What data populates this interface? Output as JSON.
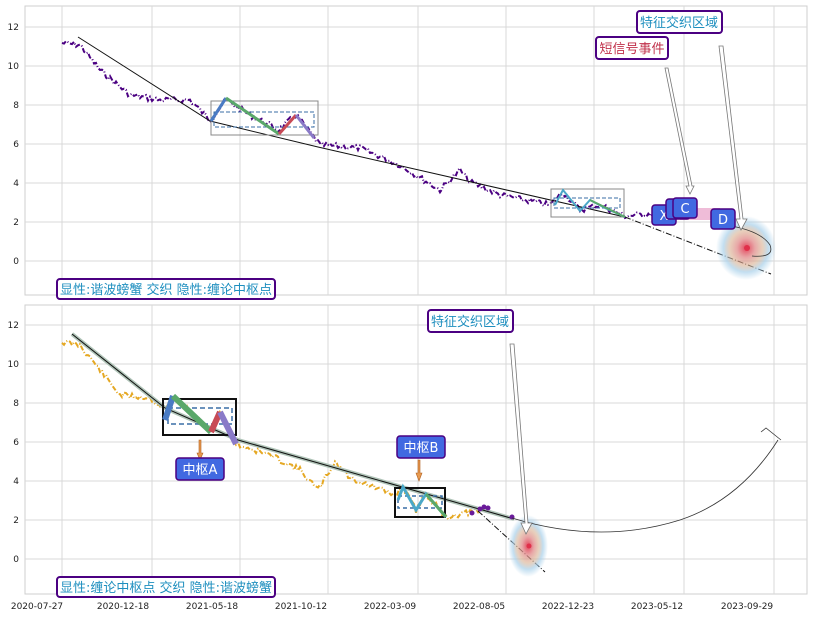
{
  "chart_data": [
    {
      "type": "line",
      "panel": "top",
      "legend_text": "显性:谐波螃蟹 交织 隐性:缠论中枢点",
      "ylim": [
        -1.8,
        13.0
      ],
      "yticks": [
        0,
        2,
        4,
        6,
        8,
        10,
        12
      ],
      "grid": true,
      "colors": {
        "price": "#4b0082",
        "trend": "#000000",
        "frame": "#4b0082"
      },
      "annotations": [
        {
          "id": "feature",
          "text": "特征交织区域",
          "color": "#1f8fbf"
        },
        {
          "id": "sms",
          "text": "短信号事件",
          "color": "#c0304a"
        },
        {
          "id": "c",
          "text": "C"
        },
        {
          "id": "x",
          "text": "X"
        },
        {
          "id": "d",
          "text": "D"
        }
      ]
    },
    {
      "type": "line",
      "panel": "bottom",
      "legend_text": "显性:缠论中枢点 交织 隐性:谐波螃蟹",
      "ylim": [
        -1.8,
        13.0
      ],
      "yticks": [
        0,
        2,
        4,
        6,
        8,
        10,
        12
      ],
      "xticks": [
        "2020-07-27",
        "2020-12-18",
        "2021-05-18",
        "2021-10-12",
        "2022-03-09",
        "2022-08-05",
        "2022-12-23",
        "2023-05-12",
        "2023-09-29"
      ],
      "grid": true,
      "colors": {
        "price": "#e5a823",
        "trend": "#000000",
        "frame": "#4b0082"
      },
      "annotations": [
        {
          "id": "feature",
          "text": "特征交织区域",
          "color": "#1f8fbf"
        },
        {
          "id": "zsa",
          "text": "中枢A"
        },
        {
          "id": "zsb",
          "text": "中枢B"
        }
      ]
    }
  ]
}
